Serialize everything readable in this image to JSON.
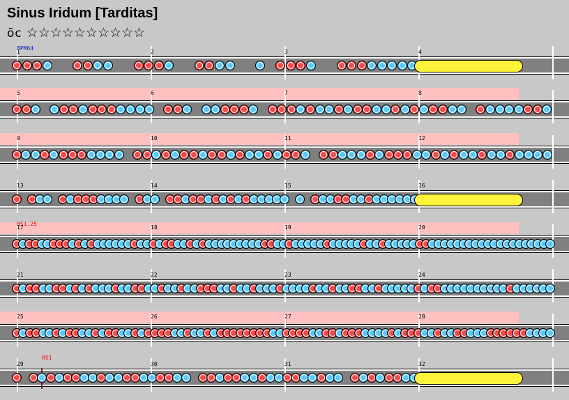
{
  "title": "Sinus Iridum [Tarditas]",
  "difficulty": {
    "label": "ōc",
    "stars": "☆☆☆☆☆☆☆☆☆☆"
  },
  "markers": {
    "bpm": "BPM64",
    "hs1": "HS1.25",
    "hs2": "HS1"
  },
  "colors": {
    "don": "#f34a4a",
    "ka": "#5cc8f5",
    "drumroll": "#fff23a",
    "lane": "#808080",
    "band": "#ffc0c0"
  },
  "rows": [
    {
      "bars": [
        "1",
        "2",
        "3",
        "4"
      ],
      "pink": false,
      "marker": "bpm",
      "notes": "DDDK  DDKK  DDDK  DDKK  K DDDK  DDDKKKKK",
      "roll": true
    },
    {
      "bars": [
        "5",
        "6",
        "7",
        "8"
      ],
      "pink": true,
      "notes": "DDK KDDKDDDKKKK DDK KKDDDK DDDKDKKDKDDKKDKDKDDKK DKKKKDDK",
      "roll": false
    },
    {
      "bars": [
        "9",
        "10",
        "11",
        "12"
      ],
      "pink": true,
      "notes": "DKKDKDDDKKKK DDKDKDDKDDKDKKDKDDK DDKKKDKDDDKKDKDKKDKKDKKKK",
      "roll": false
    },
    {
      "bars": [
        "13",
        "14",
        "15",
        "16"
      ],
      "pink": false,
      "notes": "D DKK DKDDDKKKK DKK DDKDDKDKDKDKKKKK K DKKDDKKDKKKKKK",
      "roll": true
    },
    {
      "bars": [
        "17",
        "18",
        "19",
        "20"
      ],
      "pink": true,
      "marker": "hs1",
      "notes": "DKDDKKDDDKDKDKKKKKKDKKDKDDKKDKDKKKKKKKKKDDKKDKKKKKDKKKKKDKKDKKKKKDDKKKKKKKKKKKKKKKKKKKK",
      "roll": false
    },
    {
      "bars": [
        "21",
        "22",
        "23",
        "24"
      ],
      "pink": false,
      "notes": "DKDDKKDDKDKDKKKDKKDDKKDKKDKKDDDKKDKKDKKKDKKKKDKKDKKDDKKDKKKKKDKDDKKKKKKKKKKDKKKKKK",
      "roll": false
    },
    {
      "bars": [
        "25",
        "26",
        "27",
        "28"
      ],
      "pink": true,
      "notes": "DKDDKKDKDDKKDKDDKKDKDDDDKKDKKDKDDDDDDDDKKDDDDKKDDKDDDKKKKDKDDDKKDKKDDKKKDDDDDDKKKK",
      "roll": false
    },
    {
      "bars": [
        "29",
        "30",
        "31",
        "32"
      ],
      "pink": false,
      "marker": "hs2",
      "notes": "D DKDKDDKKDKKDDKKDDKK DDKDDKKDKKDDKKDKK DKDKDDKK",
      "roll": true
    }
  ]
}
